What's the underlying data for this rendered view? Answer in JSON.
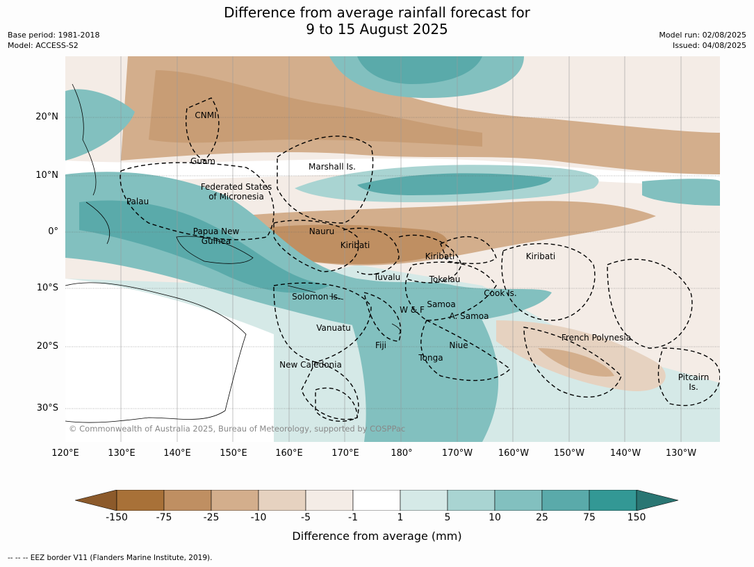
{
  "title_line1": "Difference from average rainfall forecast for",
  "title_line2": "9 to 15 August 2025",
  "base_period": "Base period: 1981-2018",
  "model": "Model: ACCESS-S2",
  "model_run": "Model run: 02/08/2025",
  "issued": "Issued: 04/08/2025",
  "lat_ticks": [
    "20°N",
    "10°N",
    "0°",
    "10°S",
    "20°S",
    "30°S"
  ],
  "lon_ticks": [
    "120°E",
    "130°E",
    "140°E",
    "150°E",
    "160°E",
    "170°E",
    "180°",
    "170°W",
    "160°W",
    "150°W",
    "140°W",
    "130°W"
  ],
  "regions": {
    "cnmi": "CNMI",
    "guam": "Guam",
    "marshall": "Marshall Is.",
    "fsm_1": "Federated States",
    "fsm_2": "of Micronesia",
    "palau": "Palau",
    "png_1": "Papua New",
    "png_2": "Guinea",
    "nauru": "Nauru",
    "kiribati_w": "Kiribati",
    "kiribati_c": "Kiribati",
    "kiribati_e": "Kiribati",
    "tuvalu": "Tuvalu",
    "tokelau": "Tokelau",
    "cook": "Cook Is.",
    "solomon": "Solomon Is.",
    "wf": "W & F",
    "samoa": "Samoa",
    "asamoa": "A. Samoa",
    "vanuatu": "Vanuatu",
    "fiji": "Fiji",
    "niue": "Niue",
    "tonga": "Tonga",
    "fp": "French Polynesia",
    "newcal": "New Caledonia",
    "pitcairn_1": "Pitcairn",
    "pitcairn_2": "Is."
  },
  "copyright": "© Commonwealth of Australia 2025, Bureau of Meteorology, supported by COSPPac",
  "colorbar": {
    "title": "Difference from average (mm)",
    "ticks": [
      "-150",
      "-75",
      "-25",
      "-10",
      "-5",
      "-1",
      "1",
      "5",
      "10",
      "25",
      "75",
      "150"
    ],
    "colors": [
      "#8c5a2b",
      "#a87138",
      "#bf8f62",
      "#d3ae8c",
      "#e6d2c0",
      "#f4ece6",
      "#ffffff",
      "#d5e9e7",
      "#a9d4d2",
      "#82c0bf",
      "#5aaaaa",
      "#339895",
      "#2a7673"
    ]
  },
  "eez_legend": "-- -- -- EEZ border V11 (Flanders Marine Institute, 2019)."
}
